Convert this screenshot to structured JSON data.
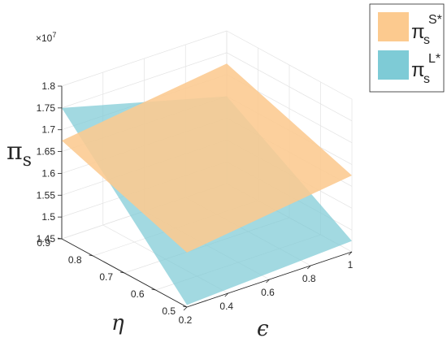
{
  "chart_data": {
    "type": "surface3d",
    "x_axis": {
      "label": "ϵ",
      "ticks": [
        "0.2",
        "0.4",
        "0.6",
        "0.8",
        "1"
      ],
      "range": [
        0.2,
        1.0
      ]
    },
    "y_axis": {
      "label": "η",
      "ticks": [
        "0.5",
        "0.6",
        "0.7",
        "0.8",
        "0.9"
      ],
      "range": [
        0.5,
        0.9
      ]
    },
    "z_axis": {
      "label": "π",
      "label_sub": "s",
      "exponent": "×10",
      "exponent_power": "7",
      "ticks": [
        "1.45",
        "1.5",
        "1.55",
        "1.6",
        "1.65",
        "1.7",
        "1.75",
        "1.8"
      ],
      "range": [
        1.45,
        1.8
      ]
    },
    "grid": true,
    "legend_position": "top-right",
    "series": [
      {
        "name": "πs^S*",
        "legend_main": "π",
        "legend_sub": "s",
        "legend_sup": "S*",
        "color": "#fcca8f",
        "corners": [
          {
            "x": 0.2,
            "y": 0.5,
            "z": 1.575
          },
          {
            "x": 1.0,
            "y": 0.5,
            "z": 1.625
          },
          {
            "x": 1.0,
            "y": 0.9,
            "z": 1.725
          },
          {
            "x": 0.2,
            "y": 0.9,
            "z": 1.675
          }
        ]
      },
      {
        "name": "πs^L*",
        "legend_main": "π",
        "legend_sub": "s",
        "legend_sup": "L*",
        "color": "#7ecbd6",
        "corners": [
          {
            "x": 0.2,
            "y": 0.5,
            "z": 1.455
          },
          {
            "x": 1.0,
            "y": 0.5,
            "z": 1.475
          },
          {
            "x": 1.0,
            "y": 0.9,
            "z": 1.65
          },
          {
            "x": 0.2,
            "y": 0.9,
            "z": 1.75
          }
        ]
      }
    ]
  }
}
